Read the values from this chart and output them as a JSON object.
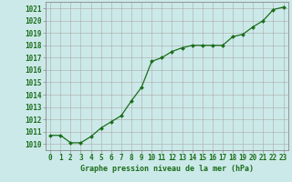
{
  "x": [
    0,
    1,
    2,
    3,
    4,
    5,
    6,
    7,
    8,
    9,
    10,
    11,
    12,
    13,
    14,
    15,
    16,
    17,
    18,
    19,
    20,
    21,
    22,
    23
  ],
  "y": [
    1010.7,
    1010.7,
    1010.1,
    1010.1,
    1010.6,
    1011.3,
    1011.8,
    1012.3,
    1013.5,
    1014.6,
    1016.7,
    1017.0,
    1017.5,
    1017.8,
    1018.0,
    1018.0,
    1018.0,
    1018.0,
    1018.7,
    1018.9,
    1019.5,
    1020.0,
    1020.9,
    1021.1
  ],
  "line_color": "#1a6e1a",
  "marker": "D",
  "marker_size": 2.0,
  "linewidth": 0.9,
  "bg_color": "#cce9e9",
  "grid_color": "#aaaaaa",
  "xlabel": "Graphe pression niveau de la mer (hPa)",
  "xlabel_color": "#1a6e1a",
  "xlabel_fontsize": 6.0,
  "tick_color": "#1a6e1a",
  "tick_fontsize": 5.5,
  "ylim": [
    1009.5,
    1021.5
  ],
  "yticks": [
    1010,
    1011,
    1012,
    1013,
    1014,
    1015,
    1016,
    1017,
    1018,
    1019,
    1020,
    1021
  ],
  "xlim": [
    -0.5,
    23.5
  ],
  "xticks": [
    0,
    1,
    2,
    3,
    4,
    5,
    6,
    7,
    8,
    9,
    10,
    11,
    12,
    13,
    14,
    15,
    16,
    17,
    18,
    19,
    20,
    21,
    22,
    23
  ]
}
